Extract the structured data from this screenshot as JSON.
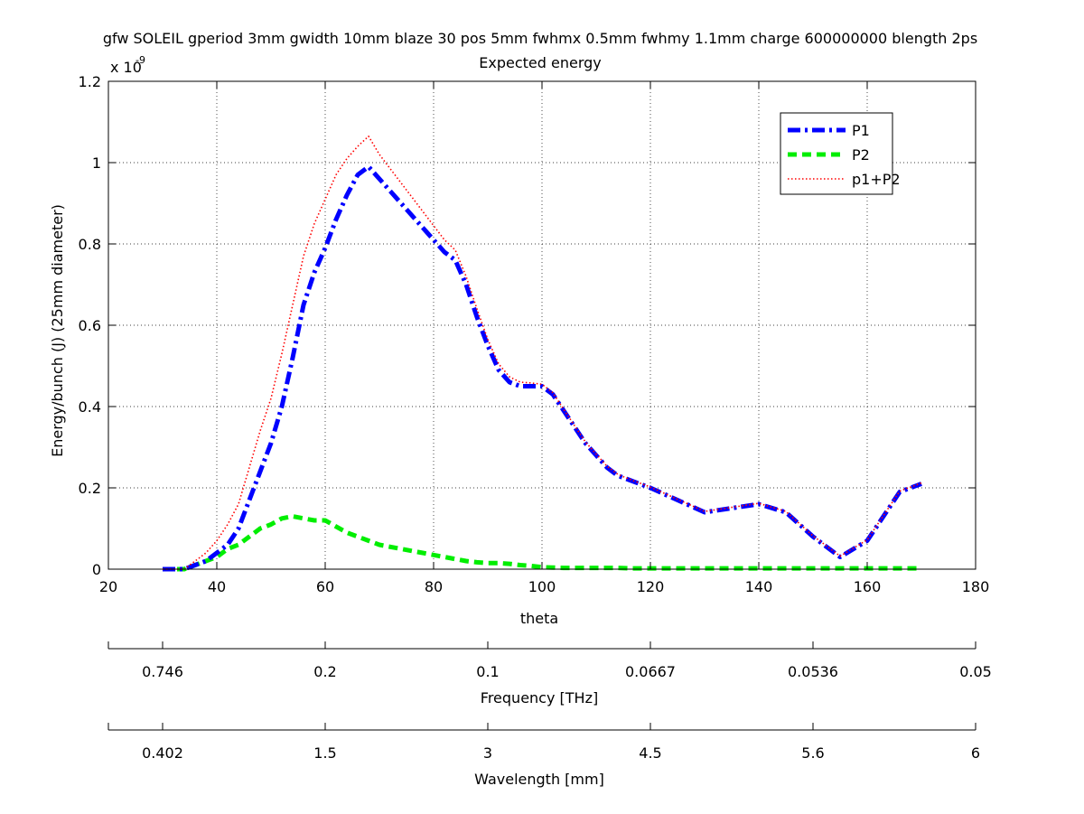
{
  "chart_data": {
    "type": "line",
    "title": "gfw SOLEIL gperiod 3mm gwidth 10mm blaze 30 pos 5mm fwhmx 0.5mm fwhmy 1.1mm charge 600000000 blength 2ps",
    "subtitle": "Expected energy",
    "xlabel": "theta",
    "ylabel": "Energy/bunch (J) (25mm diameter)",
    "y_exponent_label": "x 10",
    "y_exponent_power": "-9",
    "xlim": [
      20,
      180
    ],
    "ylim": [
      0,
      1.2
    ],
    "x_ticks": [
      20,
      40,
      60,
      80,
      100,
      120,
      140,
      160,
      180
    ],
    "y_ticks": [
      0,
      0.2,
      0.4,
      0.6,
      0.8,
      1,
      1.2
    ],
    "x_tick_labels": [
      "20",
      "40",
      "60",
      "80",
      "100",
      "120",
      "140",
      "160",
      "180"
    ],
    "y_tick_labels": [
      "0",
      "0.2",
      "0.4",
      "0.6",
      "0.8",
      "1",
      "1.2"
    ],
    "grid": true,
    "legend_position": "top-right",
    "series": [
      {
        "name": "P1",
        "color": "#0000ff",
        "style": "dash-dot",
        "x": [
          30,
          34,
          36,
          38,
          40,
          42,
          44,
          46,
          48,
          50,
          52,
          54,
          56,
          58,
          60,
          62,
          64,
          66,
          68,
          70,
          72,
          74,
          76,
          78,
          80,
          82,
          84,
          86,
          88,
          90,
          92,
          94,
          96,
          98,
          100,
          102,
          104,
          106,
          108,
          110,
          112,
          114,
          116,
          118,
          120,
          125,
          130,
          135,
          140,
          145,
          150,
          155,
          160,
          163,
          166,
          170
        ],
        "y": [
          0.0,
          0.0,
          0.01,
          0.02,
          0.04,
          0.06,
          0.1,
          0.17,
          0.24,
          0.31,
          0.4,
          0.52,
          0.65,
          0.73,
          0.79,
          0.86,
          0.92,
          0.97,
          0.99,
          0.96,
          0.93,
          0.9,
          0.87,
          0.84,
          0.81,
          0.78,
          0.76,
          0.7,
          0.62,
          0.55,
          0.49,
          0.46,
          0.45,
          0.45,
          0.45,
          0.43,
          0.39,
          0.35,
          0.31,
          0.28,
          0.25,
          0.23,
          0.22,
          0.21,
          0.2,
          0.17,
          0.14,
          0.15,
          0.16,
          0.14,
          0.08,
          0.03,
          0.07,
          0.13,
          0.19,
          0.21
        ]
      },
      {
        "name": "P2",
        "color": "#00ee00",
        "style": "dashed",
        "x": [
          30,
          34,
          36,
          38,
          40,
          42,
          44,
          46,
          48,
          50,
          52,
          54,
          56,
          58,
          60,
          62,
          64,
          66,
          68,
          70,
          72,
          74,
          76,
          78,
          80,
          82,
          84,
          86,
          88,
          90,
          92,
          94,
          96,
          98,
          100,
          102,
          104,
          106,
          108,
          110,
          112,
          114,
          116,
          118,
          120,
          125,
          130,
          135,
          140,
          145,
          150,
          155,
          160,
          163,
          166,
          170
        ],
        "y": [
          0.0,
          0.0,
          0.01,
          0.02,
          0.03,
          0.05,
          0.06,
          0.08,
          0.1,
          0.11,
          0.125,
          0.13,
          0.125,
          0.12,
          0.12,
          0.105,
          0.09,
          0.08,
          0.07,
          0.06,
          0.055,
          0.05,
          0.045,
          0.04,
          0.035,
          0.03,
          0.025,
          0.02,
          0.017,
          0.015,
          0.015,
          0.013,
          0.01,
          0.008,
          0.005,
          0.004,
          0.003,
          0.003,
          0.003,
          0.003,
          0.003,
          0.003,
          0.002,
          0.002,
          0.002,
          0.002,
          0.002,
          0.002,
          0.002,
          0.002,
          0.002,
          0.002,
          0.002,
          0.002,
          0.002,
          0.002
        ]
      },
      {
        "name": "p1+P2",
        "color": "#ff0000",
        "style": "dotted",
        "x": [
          30,
          34,
          36,
          38,
          40,
          42,
          44,
          46,
          48,
          50,
          52,
          54,
          56,
          58,
          60,
          62,
          64,
          66,
          68,
          70,
          72,
          74,
          76,
          78,
          80,
          82,
          84,
          86,
          88,
          90,
          92,
          94,
          96,
          98,
          100,
          102,
          104,
          106,
          108,
          110,
          112,
          114,
          116,
          118,
          120,
          125,
          130,
          135,
          140,
          145,
          150,
          155,
          160,
          163,
          166,
          170
        ],
        "y": [
          0.0,
          0.0,
          0.02,
          0.04,
          0.07,
          0.11,
          0.16,
          0.25,
          0.34,
          0.42,
          0.53,
          0.65,
          0.77,
          0.85,
          0.91,
          0.97,
          1.01,
          1.04,
          1.065,
          1.02,
          0.985,
          0.95,
          0.915,
          0.88,
          0.845,
          0.81,
          0.785,
          0.72,
          0.64,
          0.565,
          0.505,
          0.473,
          0.46,
          0.458,
          0.455,
          0.434,
          0.393,
          0.353,
          0.313,
          0.283,
          0.253,
          0.233,
          0.222,
          0.212,
          0.202,
          0.172,
          0.142,
          0.152,
          0.162,
          0.142,
          0.082,
          0.032,
          0.072,
          0.132,
          0.192,
          0.212
        ]
      }
    ],
    "secondary_axes": [
      {
        "label": "Frequency [THz]",
        "tick_theta": [
          20,
          30,
          60,
          90,
          120,
          150,
          180
        ],
        "tick_labels": [
          "",
          "0.746",
          "0.2",
          "0.1",
          "0.0667",
          "0.0536",
          "0.05"
        ]
      },
      {
        "label": "Wavelength [mm]",
        "tick_theta": [
          20,
          30,
          60,
          90,
          120,
          150,
          180
        ],
        "tick_labels": [
          "",
          "0.402",
          "1.5",
          "3",
          "4.5",
          "5.6",
          "6"
        ]
      }
    ]
  }
}
